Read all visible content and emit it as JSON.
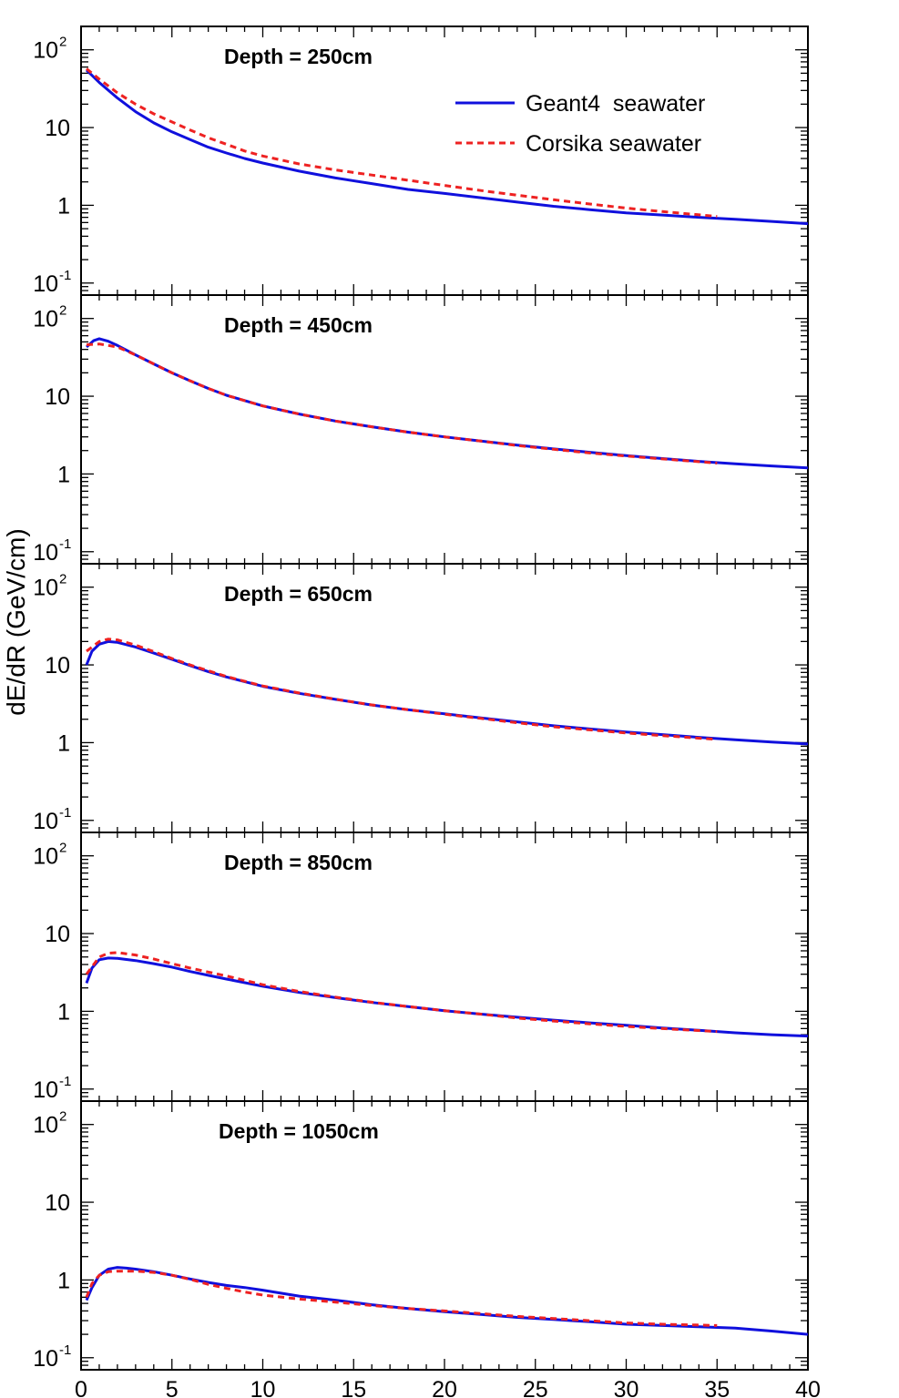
{
  "chart_data": {
    "type": "line",
    "ylabel": "dE/dR (GeV/cm)",
    "xlabel": "",
    "xlim": [
      0,
      40
    ],
    "ylim": [
      0.07,
      200
    ],
    "yscale": "log",
    "x_ticks": [
      "0",
      "5",
      "10",
      "15",
      "20",
      "25",
      "30",
      "35",
      "40"
    ],
    "y_ticks": [
      {
        "base": "10",
        "exp": "-1",
        "value": 0.1
      },
      {
        "base": "1",
        "exp": "",
        "value": 1
      },
      {
        "base": "10",
        "exp": "",
        "value": 10
      },
      {
        "base": "10",
        "exp": "2",
        "value": 100
      }
    ],
    "legend": {
      "placement": "top-right",
      "entries": [
        {
          "label": "Geant4  seawater",
          "color": "#1010dd",
          "style": "solid"
        },
        {
          "label": "Corsika seawater",
          "color": "#ee2222",
          "style": "dashed"
        }
      ]
    },
    "panels": [
      {
        "title": "Depth = 250cm",
        "series": [
          {
            "name": "Geant4  seawater",
            "x": [
              0.3,
              1,
              2,
              3,
              4,
              5,
              6,
              7,
              8,
              9,
              10,
              12,
              14,
              16,
              18,
              20,
              22,
              24,
              26,
              28,
              30,
              32,
              34,
              36,
              38,
              40
            ],
            "y": [
              55,
              38,
              24,
              16,
              11.5,
              8.8,
              7,
              5.6,
              4.7,
              4.0,
              3.5,
              2.75,
              2.25,
              1.9,
              1.6,
              1.42,
              1.25,
              1.1,
              0.97,
              0.88,
              0.8,
              0.75,
              0.7,
              0.66,
              0.62,
              0.58
            ]
          },
          {
            "name": "Corsika seawater",
            "x": [
              0.3,
              1,
              2,
              3,
              4,
              5,
              6,
              7,
              8,
              9,
              10,
              12,
              14,
              16,
              18,
              20,
              22,
              24,
              26,
              28,
              30,
              32,
              35
            ],
            "y": [
              57,
              42,
              28,
              20,
              15,
              11.8,
              9.3,
              7.4,
              6.1,
              5.0,
              4.3,
              3.4,
              2.85,
              2.45,
              2.1,
              1.8,
              1.55,
              1.35,
              1.18,
              1.04,
              0.92,
              0.83,
              0.72
            ]
          }
        ]
      },
      {
        "title": "Depth = 450cm",
        "series": [
          {
            "name": "Geant4  seawater",
            "x": [
              0.3,
              0.7,
              1,
              1.5,
              2,
              3,
              4,
              5,
              6,
              7,
              8,
              10,
              12,
              14,
              16,
              18,
              20,
              22,
              24,
              26,
              28,
              30,
              32,
              34,
              36,
              38,
              40
            ],
            "y": [
              43,
              52,
              55,
              51,
              45,
              34,
              26,
              20,
              15.8,
              12.6,
              10.3,
              7.5,
              5.9,
              4.8,
              4.05,
              3.45,
              3.0,
              2.65,
              2.35,
              2.1,
              1.9,
              1.72,
              1.58,
              1.45,
              1.35,
              1.27,
              1.2
            ]
          },
          {
            "name": "Corsika seawater",
            "x": [
              0.3,
              1,
              2,
              3,
              4,
              5,
              6,
              7,
              8,
              10,
              12,
              14,
              16,
              18,
              20,
              22,
              24,
              26,
              28,
              30,
              32,
              35
            ],
            "y": [
              46,
              47,
              43,
              34,
              26,
              20,
              15.8,
              12.6,
              10.3,
              7.5,
              5.9,
              4.8,
              4.05,
              3.45,
              3.0,
              2.65,
              2.32,
              2.08,
              1.86,
              1.7,
              1.56,
              1.38
            ]
          }
        ]
      },
      {
        "title": "Depth = 650cm",
        "series": [
          {
            "name": "Geant4  seawater",
            "x": [
              0.3,
              0.6,
              1,
              1.5,
              2,
              3,
              4,
              5,
              6,
              7,
              8,
              10,
              12,
              14,
              16,
              18,
              20,
              22,
              24,
              26,
              28,
              30,
              32,
              34,
              36,
              38,
              40
            ],
            "y": [
              10,
              15,
              18.5,
              20,
              19.5,
              17,
              14.2,
              11.8,
              9.8,
              8.2,
              7.0,
              5.3,
              4.3,
              3.6,
              3.05,
              2.65,
              2.35,
              2.08,
              1.85,
              1.65,
              1.5,
              1.37,
              1.27,
              1.17,
              1.09,
              1.02,
              0.96
            ]
          },
          {
            "name": "Corsika seawater",
            "x": [
              0.3,
              1,
              1.5,
              2,
              3,
              4,
              5,
              6,
              7,
              8,
              10,
              12,
              14,
              16,
              18,
              20,
              22,
              24,
              26,
              28,
              30,
              32,
              35
            ],
            "y": [
              15,
              20,
              21.5,
              21,
              18,
              14.8,
              12.1,
              10.0,
              8.4,
              7.1,
              5.35,
              4.35,
              3.62,
              3.06,
              2.65,
              2.32,
              2.05,
              1.8,
              1.6,
              1.46,
              1.33,
              1.23,
              1.1
            ]
          }
        ]
      },
      {
        "title": "Depth = 850cm",
        "series": [
          {
            "name": "Geant4  seawater",
            "x": [
              0.3,
              0.6,
              1,
              1.5,
              2,
              3,
              4,
              5,
              6,
              7,
              8,
              10,
              12,
              14,
              16,
              18,
              20,
              22,
              24,
              26,
              28,
              30,
              32,
              34,
              36,
              38,
              40
            ],
            "y": [
              2.3,
              3.6,
              4.6,
              4.85,
              4.8,
              4.5,
              4.1,
              3.7,
              3.25,
              2.9,
              2.6,
              2.1,
              1.75,
              1.5,
              1.3,
              1.15,
              1.02,
              0.92,
              0.84,
              0.77,
              0.71,
              0.66,
              0.61,
              0.57,
              0.53,
              0.5,
              0.48
            ]
          },
          {
            "name": "Corsika seawater",
            "x": [
              0.3,
              1,
              1.5,
              2,
              3,
              4,
              5,
              6,
              7,
              8,
              9,
              10,
              12,
              14,
              16,
              18,
              20,
              22,
              24,
              26,
              28,
              30,
              32,
              35
            ],
            "y": [
              3.0,
              5.0,
              5.6,
              5.7,
              5.3,
              4.7,
              4.1,
              3.6,
              3.2,
              2.85,
              2.5,
              2.2,
              1.8,
              1.52,
              1.31,
              1.15,
              1.02,
              0.92,
              0.82,
              0.75,
              0.69,
              0.64,
              0.6,
              0.55
            ]
          }
        ]
      },
      {
        "title": "Depth = 1050cm",
        "series": [
          {
            "name": "Geant4  seawater",
            "x": [
              0.3,
              0.6,
              1,
              1.5,
              2,
              2.5,
              3,
              4,
              5,
              6,
              7,
              8,
              9,
              10,
              12,
              14,
              16,
              18,
              20,
              22,
              24,
              26,
              28,
              30,
              32,
              34,
              36,
              38,
              40
            ],
            "y": [
              0.55,
              0.8,
              1.15,
              1.38,
              1.45,
              1.42,
              1.38,
              1.28,
              1.15,
              1.03,
              0.93,
              0.85,
              0.8,
              0.74,
              0.62,
              0.55,
              0.48,
              0.43,
              0.39,
              0.36,
              0.33,
              0.31,
              0.29,
              0.27,
              0.26,
              0.25,
              0.24,
              0.22,
              0.2
            ]
          },
          {
            "name": "Corsika seawater",
            "x": [
              0.3,
              0.6,
              1,
              1.5,
              2,
              3,
              4,
              5,
              6,
              7,
              8,
              9,
              10,
              12,
              14,
              16,
              18,
              20,
              22,
              24,
              26,
              28,
              30,
              32,
              35
            ],
            "y": [
              0.6,
              0.9,
              1.15,
              1.28,
              1.3,
              1.3,
              1.25,
              1.15,
              1.02,
              0.88,
              0.78,
              0.7,
              0.64,
              0.57,
              0.52,
              0.47,
              0.43,
              0.4,
              0.37,
              0.34,
              0.32,
              0.3,
              0.28,
              0.27,
              0.26
            ]
          }
        ]
      }
    ]
  }
}
